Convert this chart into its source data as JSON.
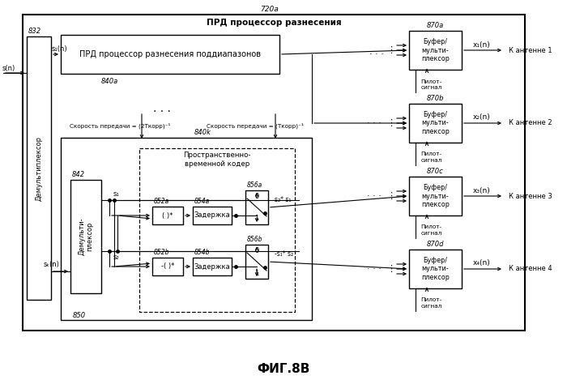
{
  "title": "ФИГ.8В",
  "bg_color": "#ffffff",
  "fig_label": "720a",
  "outer_label": "ПРД процессор разнесения",
  "demux_main_label": "Демультиплексор",
  "demux_main_id": "832",
  "s_in": "s(n)",
  "sk_in": "sₖ(n)",
  "subband_box_label": "ПРД процессор разнесения поддиапазонов",
  "subband_id": "840a",
  "subband_id2": "840k",
  "rate1": "Скорость передачи = (2Tкорр)⁻¹",
  "rate2": "Скорость передачи = (Tкорр)⁻¹",
  "inner_demux_label": "Демульти-\nплексор",
  "inner_demux_id": "842",
  "stc_label": "Пространственно-\nвременной кодер",
  "conj_a_label": "( )*",
  "conj_a_id": "852a",
  "delay_a_label": "Задержка",
  "delay_a_id": "854a",
  "mux_a_id": "856a",
  "conj_b_label": "-( )*",
  "conj_b_id": "852b",
  "delay_b_label": "Задержка",
  "delay_b_id": "854b",
  "mux_b_id": "856b",
  "bottom_id": "850",
  "buf_label": "Буфер/\nмульти-\nплексор",
  "buf_ids": [
    "870a",
    "870b",
    "870c",
    "870d"
  ],
  "antenna_labels": [
    "К антенне 1",
    "К антенне 2",
    "К антенне 3",
    "К антенне 4"
  ],
  "x_labels": [
    "x₁(n)",
    "x₂(n)",
    "x₃(n)",
    "x₄(n)"
  ],
  "pilot_label": "Пилот-\nсигнал",
  "s1_label": "s₁",
  "s2_label": "s₂",
  "s1n_label": "s₁(n)",
  "dots3": "⋮"
}
